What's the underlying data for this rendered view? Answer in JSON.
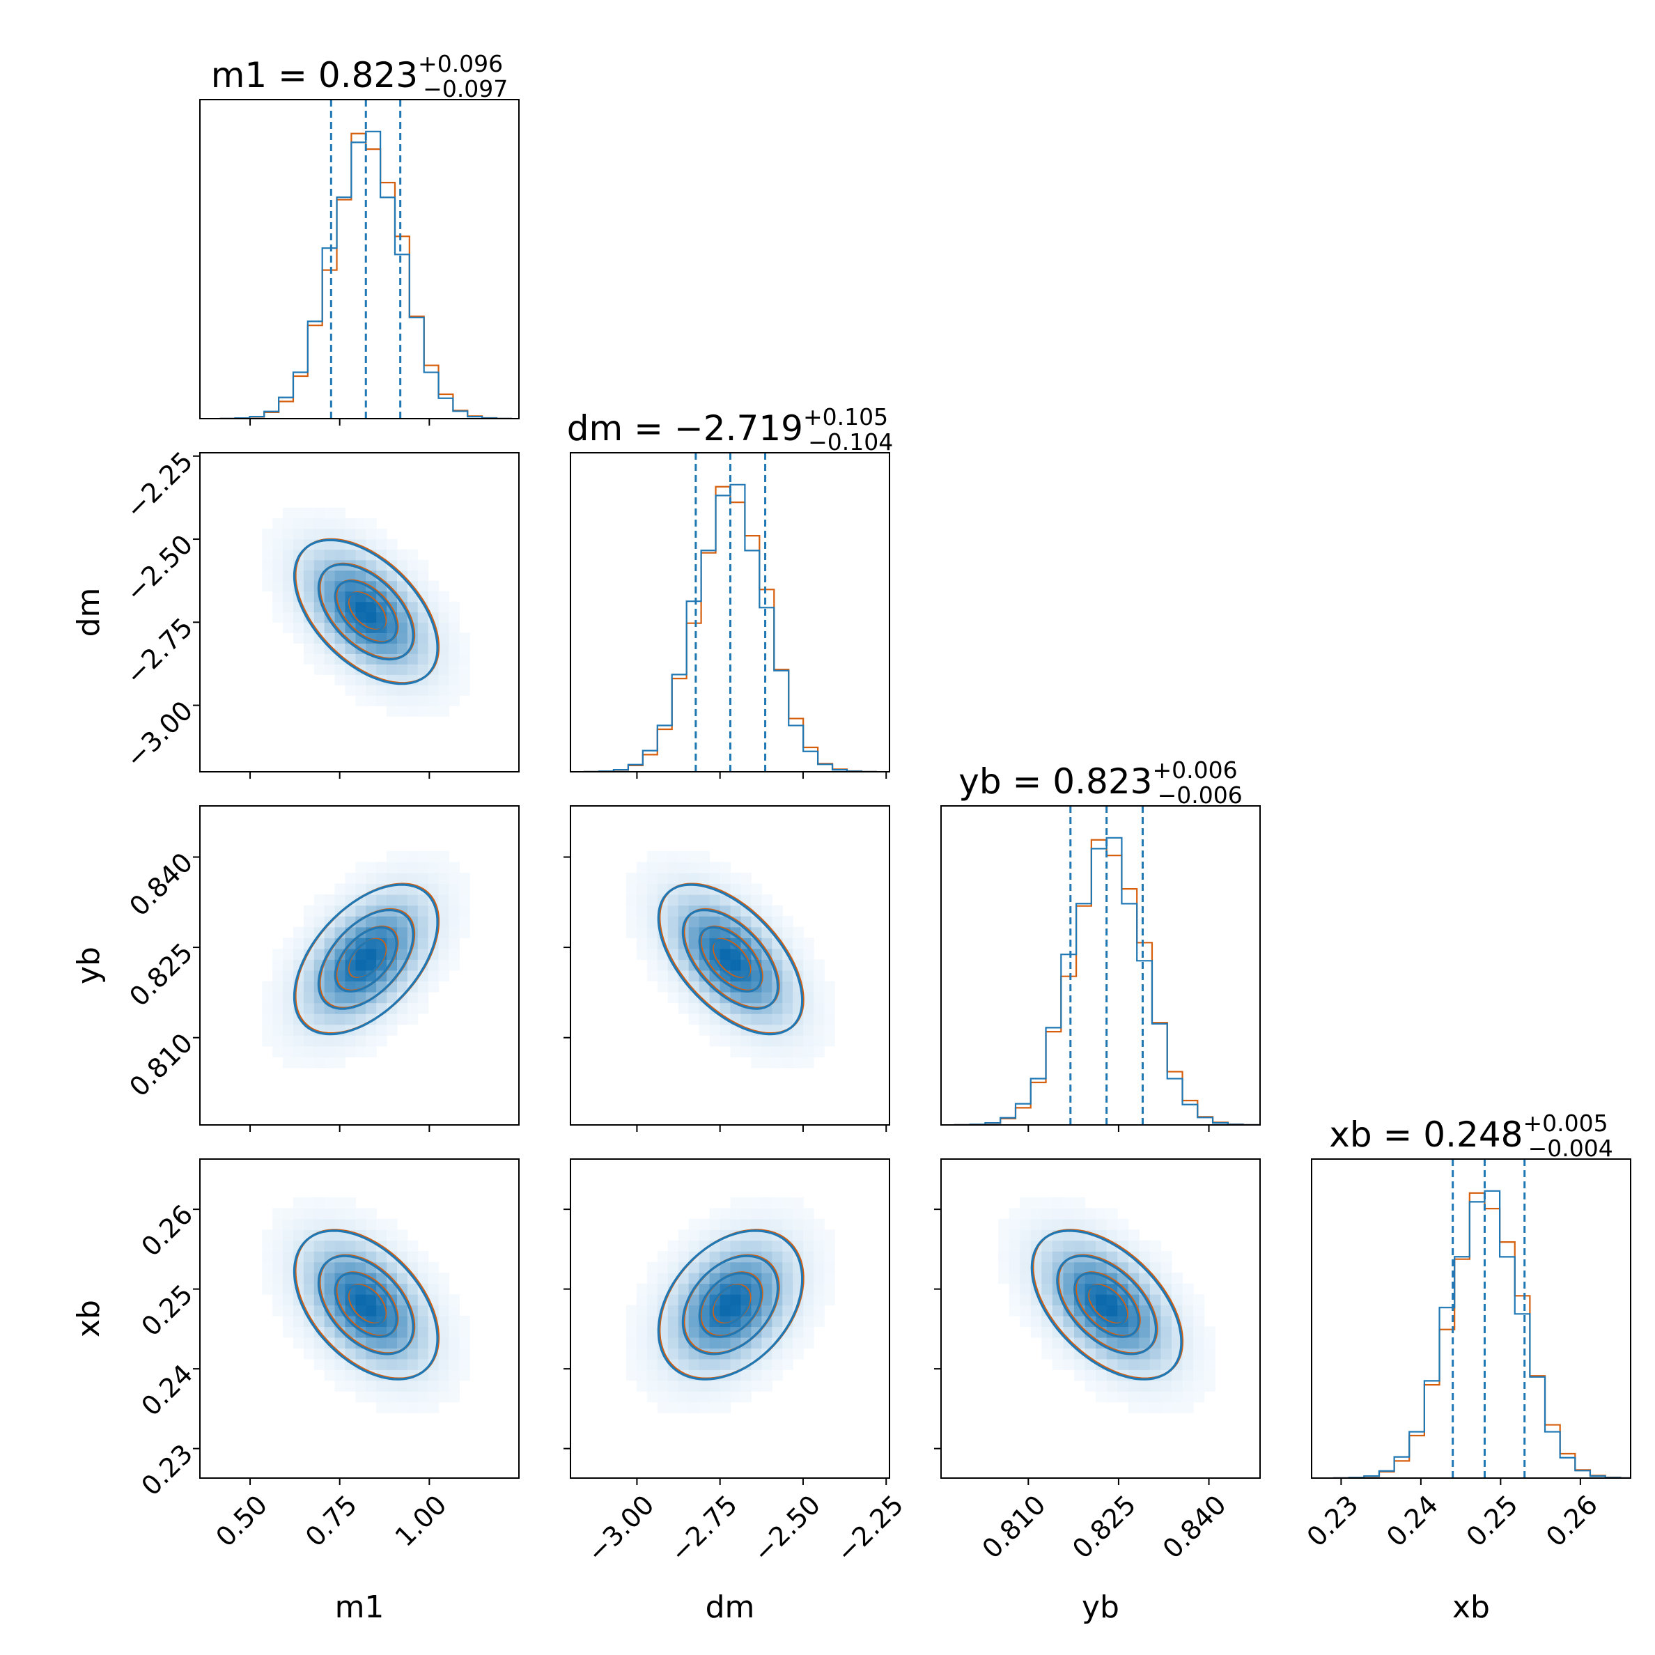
{
  "chart_data": {
    "type": "corner",
    "parameters": [
      {
        "name": "m1",
        "median_label": "0.823",
        "plus": "+0.096",
        "minus": "−0.097",
        "median": 0.823,
        "q16": 0.726,
        "q84": 0.919,
        "range": [
          0.36,
          1.25
        ],
        "ticks": [
          0.5,
          0.75,
          1.0
        ],
        "tick_labels": [
          "0.50",
          "0.75",
          "1.00"
        ],
        "axis_label": "m1"
      },
      {
        "name": "dm",
        "median_label": "−2.719",
        "plus": "+0.105",
        "minus": "−0.104",
        "median": -2.719,
        "q16": -2.823,
        "q84": -2.614,
        "range": [
          -3.2,
          -2.24
        ],
        "ticks": [
          -3.0,
          -2.75,
          -2.5,
          -2.25
        ],
        "tick_labels": [
          "−3.00",
          "−2.75",
          "−2.50",
          "−2.25"
        ],
        "axis_label": "dm"
      },
      {
        "name": "yb",
        "median_label": "0.823",
        "plus": "+0.006",
        "minus": "−0.006",
        "median": 0.823,
        "q16": 0.817,
        "q84": 0.829,
        "range": [
          0.7955,
          0.8485
        ],
        "ticks": [
          0.81,
          0.825,
          0.84
        ],
        "tick_labels": [
          "0.810",
          "0.825",
          "0.840"
        ],
        "axis_label": "yb"
      },
      {
        "name": "xb",
        "median_label": "0.248",
        "plus": "+0.005",
        "minus": "−0.004",
        "median": 0.248,
        "q16": 0.244,
        "q84": 0.253,
        "range": [
          0.2263,
          0.2663
        ],
        "ticks": [
          0.23,
          0.24,
          0.25,
          0.26
        ],
        "tick_labels": [
          "0.23",
          "0.24",
          "0.25",
          "0.26"
        ],
        "axis_label": "xb"
      }
    ],
    "series": [
      {
        "color": "#1f77b4"
      },
      {
        "color": "#d65f0e"
      }
    ],
    "correlations": {
      "1-0": -0.5,
      "2-0": 0.5,
      "2-1": -0.55,
      "3-0": -0.45,
      "3-1": 0.35,
      "3-2": -0.5
    },
    "contour_levels_sigma": [
      0.5,
      1.0,
      1.5,
      2.0
    ],
    "quantile_line_color": "#1f77b4",
    "grid": false
  }
}
